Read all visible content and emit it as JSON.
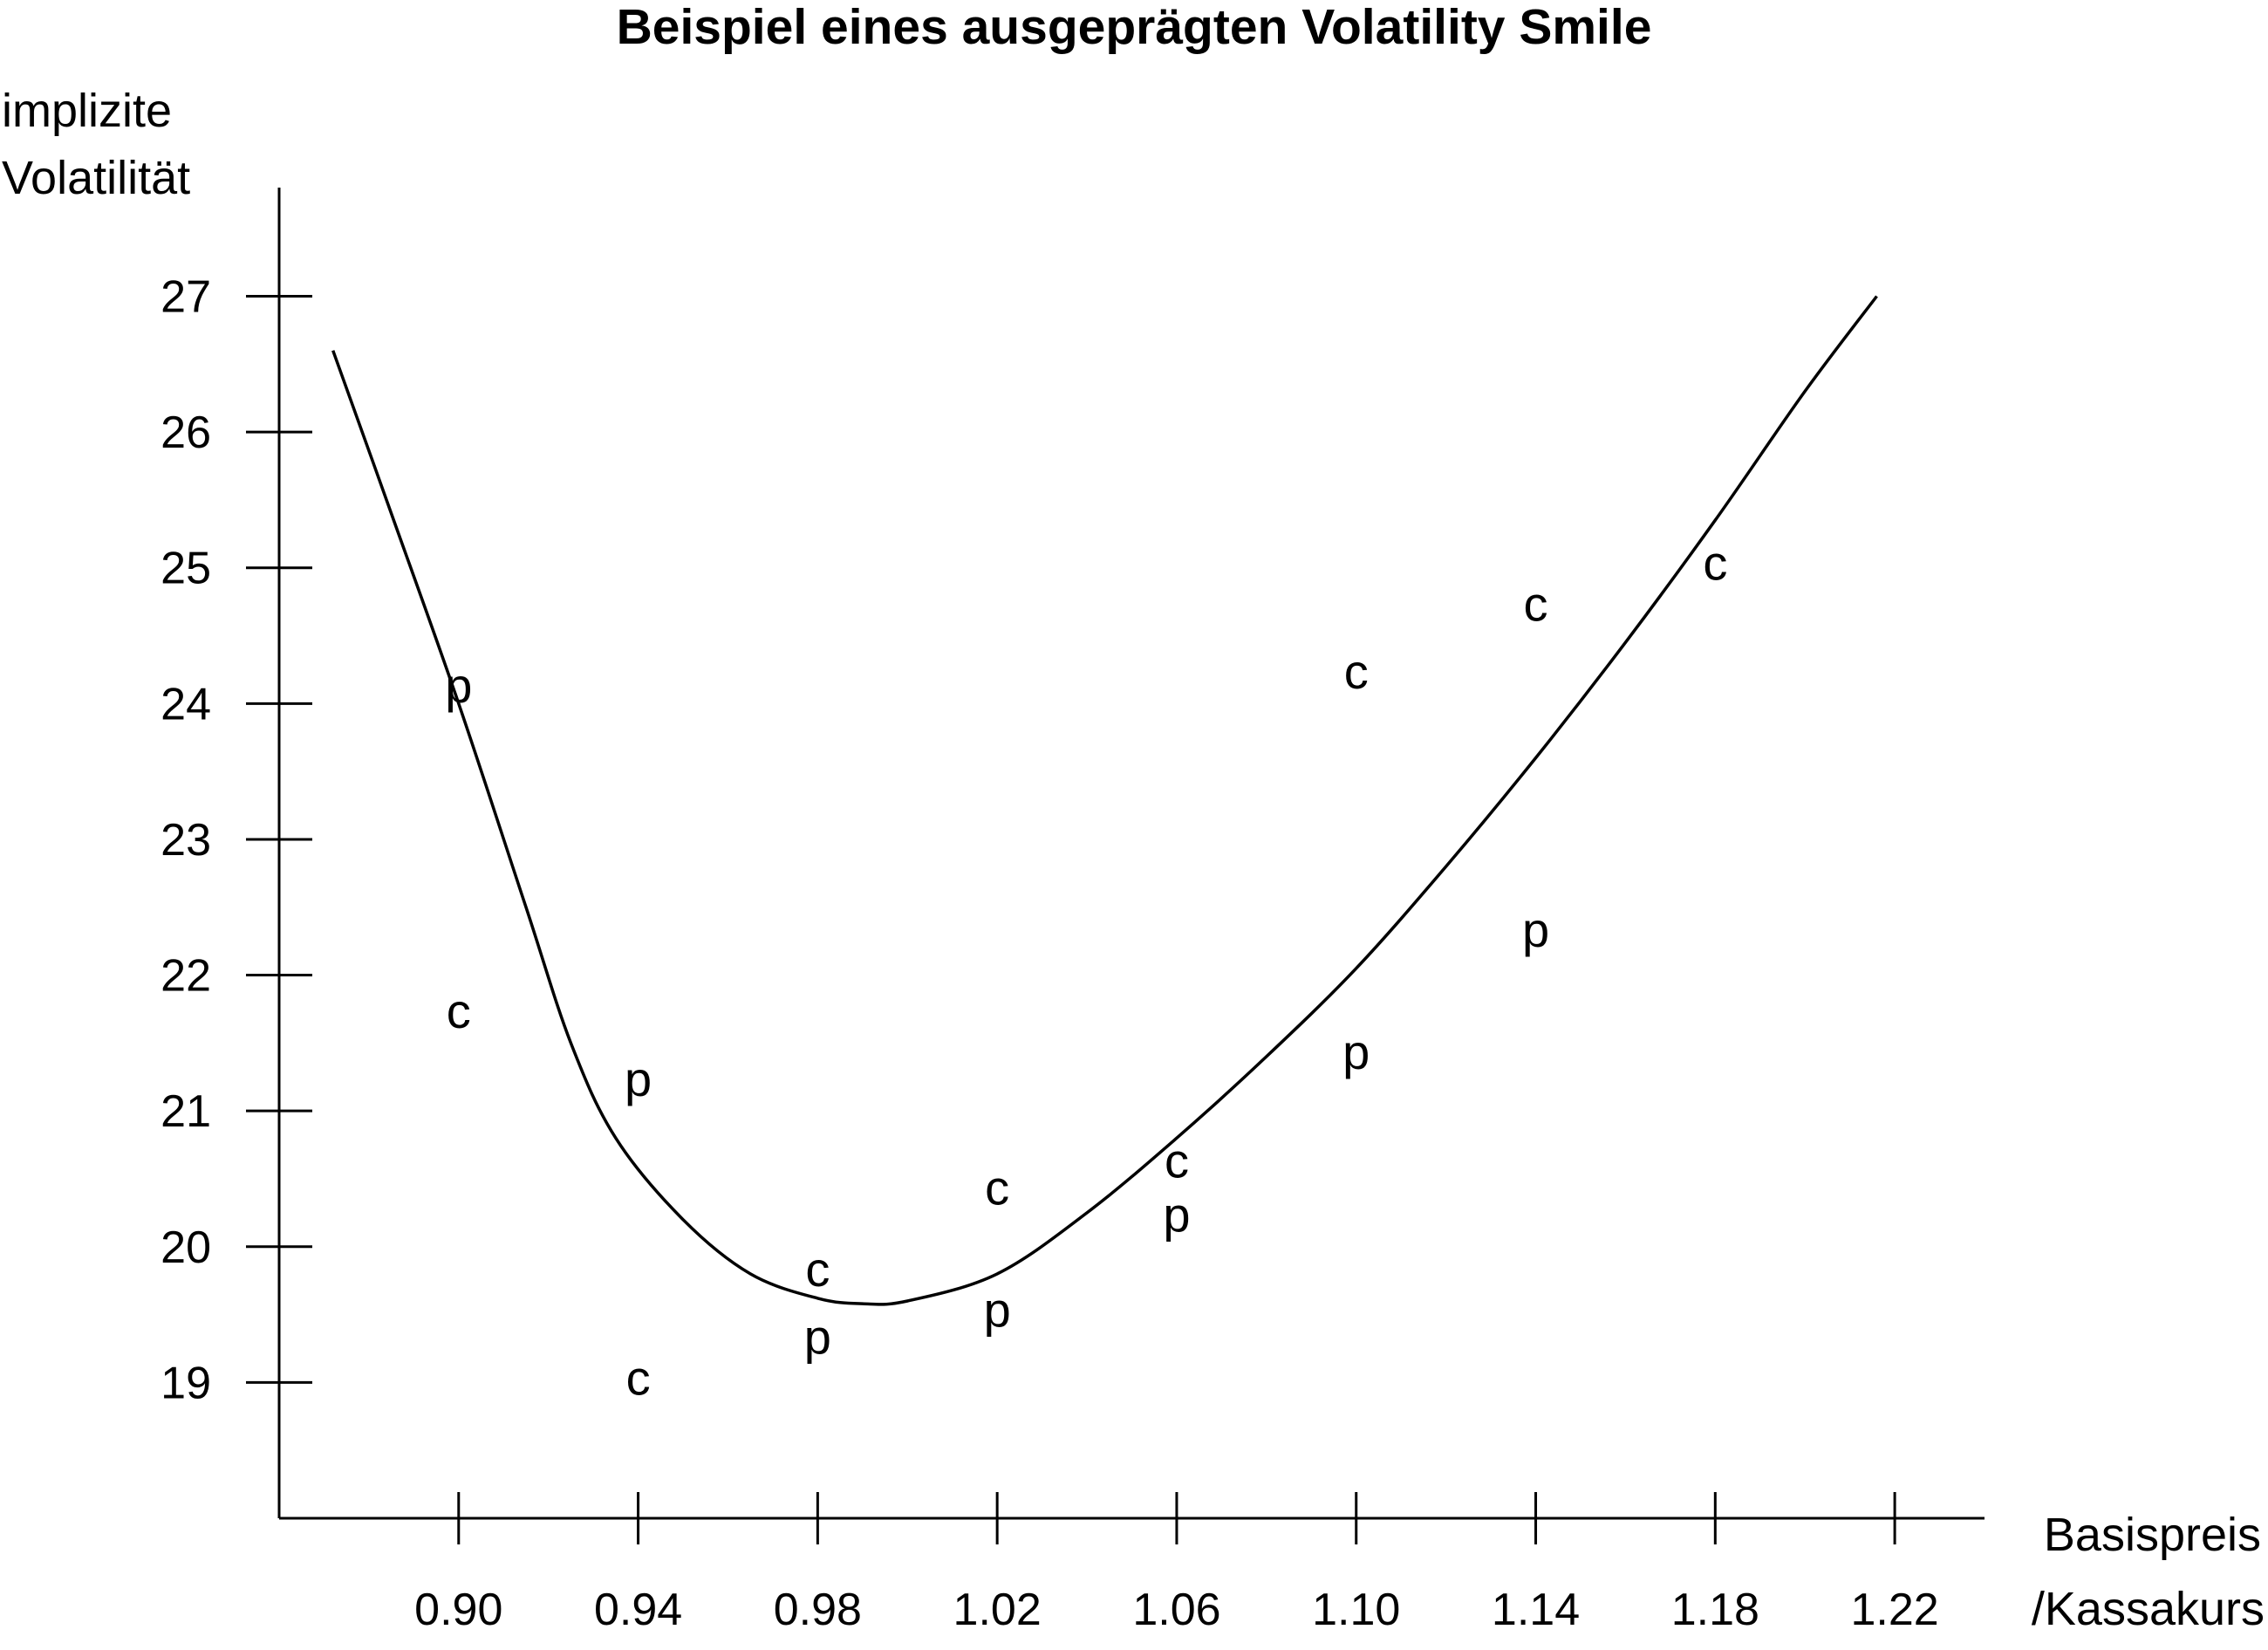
{
  "chart_data": {
    "type": "scatter",
    "title": "Beispiel eines ausgeprägten Volatility Smile",
    "ylabel": [
      "implizite",
      "Volatilität"
    ],
    "xlabel": [
      "Basispreis",
      "/Kassakurs"
    ],
    "x_ticks": [
      "0.90",
      "0.94",
      "0.98",
      "1.02",
      "1.06",
      "1.10",
      "1.14",
      "1.18",
      "1.22"
    ],
    "y_ticks": [
      "19",
      "20",
      "21",
      "22",
      "23",
      "24",
      "25",
      "26",
      "27"
    ],
    "xlim": [
      0.86,
      1.24
    ],
    "ylim": [
      18.0,
      27.8
    ],
    "points": [
      {
        "x": 0.9,
        "y": 24.1,
        "label": "p"
      },
      {
        "x": 0.9,
        "y": 21.7,
        "label": "c"
      },
      {
        "x": 0.94,
        "y": 21.2,
        "label": "p"
      },
      {
        "x": 0.94,
        "y": 19.0,
        "label": "c"
      },
      {
        "x": 0.98,
        "y": 19.8,
        "label": "c"
      },
      {
        "x": 0.98,
        "y": 19.3,
        "label": "p"
      },
      {
        "x": 1.02,
        "y": 20.4,
        "label": "c"
      },
      {
        "x": 1.02,
        "y": 19.5,
        "label": "p"
      },
      {
        "x": 1.06,
        "y": 20.6,
        "label": "c"
      },
      {
        "x": 1.06,
        "y": 20.2,
        "label": "p"
      },
      {
        "x": 1.1,
        "y": 24.2,
        "label": "c"
      },
      {
        "x": 1.1,
        "y": 21.4,
        "label": "p"
      },
      {
        "x": 1.14,
        "y": 24.7,
        "label": "c"
      },
      {
        "x": 1.14,
        "y": 22.3,
        "label": "p"
      },
      {
        "x": 1.18,
        "y": 25.0,
        "label": "c"
      }
    ],
    "smile_curve": [
      {
        "x": 0.872,
        "y": 26.6
      },
      {
        "x": 0.885,
        "y": 25.4
      },
      {
        "x": 0.9,
        "y": 24.0
      },
      {
        "x": 0.915,
        "y": 22.5
      },
      {
        "x": 0.925,
        "y": 21.5
      },
      {
        "x": 0.935,
        "y": 20.8
      },
      {
        "x": 0.95,
        "y": 20.2
      },
      {
        "x": 0.965,
        "y": 19.8
      },
      {
        "x": 0.98,
        "y": 19.62
      },
      {
        "x": 0.99,
        "y": 19.58
      },
      {
        "x": 1.0,
        "y": 19.6
      },
      {
        "x": 1.02,
        "y": 19.8
      },
      {
        "x": 1.04,
        "y": 20.25
      },
      {
        "x": 1.06,
        "y": 20.8
      },
      {
        "x": 1.08,
        "y": 21.4
      },
      {
        "x": 1.1,
        "y": 22.05
      },
      {
        "x": 1.12,
        "y": 22.8
      },
      {
        "x": 1.14,
        "y": 23.6
      },
      {
        "x": 1.16,
        "y": 24.45
      },
      {
        "x": 1.18,
        "y": 25.35
      },
      {
        "x": 1.2,
        "y": 26.3
      },
      {
        "x": 1.216,
        "y": 27.0
      }
    ]
  }
}
